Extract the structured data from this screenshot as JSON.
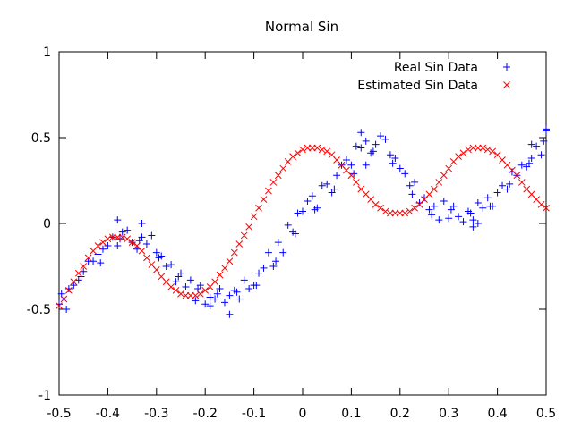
{
  "chart_data": {
    "type": "scatter",
    "title": "Normal Sin",
    "xlabel": "",
    "ylabel": "",
    "xlim": [
      -0.5,
      0.5
    ],
    "ylim": [
      -1,
      1
    ],
    "grid": false,
    "legend_position": "top-right",
    "x_ticks": [
      "-0.5",
      "-0.4",
      "-0.3",
      "-0.2",
      "-0.1",
      "0",
      "0.1",
      "0.2",
      "0.3",
      "0.4",
      "0.5"
    ],
    "x_tick_values": [
      -0.5,
      -0.4,
      -0.3,
      -0.2,
      -0.1,
      0,
      0.1,
      0.2,
      0.3,
      0.4,
      0.5
    ],
    "y_ticks": [
      "1",
      "0.5",
      "0",
      "-0.5",
      "-1"
    ],
    "y_tick_values": [
      1,
      0.5,
      0,
      -0.5,
      -1
    ],
    "series": [
      {
        "name": "Real Sin Data",
        "marker": "plus",
        "color": "#0000ff",
        "x": [
          -0.5,
          -0.49,
          -0.485,
          -0.48,
          -0.47,
          -0.46,
          -0.45,
          -0.44,
          -0.43,
          -0.42,
          -0.41,
          -0.4,
          -0.39,
          -0.38,
          -0.37,
          -0.36,
          -0.35,
          -0.34,
          -0.33,
          -0.32,
          -0.31,
          -0.3,
          -0.29,
          -0.28,
          -0.27,
          -0.26,
          -0.25,
          -0.24,
          -0.23,
          -0.22,
          -0.21,
          -0.2,
          -0.19,
          -0.18,
          -0.17,
          -0.16,
          -0.15,
          -0.14,
          -0.13,
          -0.12,
          -0.11,
          -0.1,
          -0.09,
          -0.08,
          -0.07,
          -0.06,
          -0.05,
          -0.04,
          -0.03,
          -0.02,
          -0.01,
          0.0,
          0.01,
          0.02,
          0.03,
          0.04,
          0.05,
          0.06,
          0.07,
          0.08,
          0.09,
          0.1,
          0.11,
          0.12,
          0.13,
          0.14,
          0.15,
          0.16,
          0.17,
          0.18,
          0.19,
          0.2,
          0.21,
          0.22,
          0.23,
          0.24,
          0.25,
          0.26,
          0.27,
          0.28,
          0.29,
          0.3,
          0.31,
          0.32,
          0.33,
          0.34,
          0.35,
          0.36,
          0.37,
          0.38,
          0.39,
          0.4,
          0.41,
          0.42,
          0.43,
          0.44,
          0.45,
          0.46,
          0.47,
          0.48,
          0.49,
          0.5,
          -0.495,
          -0.455,
          -0.415,
          -0.375,
          -0.335,
          -0.295,
          -0.255,
          -0.215,
          -0.175,
          -0.135,
          -0.095,
          -0.055,
          -0.015,
          0.025,
          0.065,
          0.105,
          0.145,
          0.185,
          0.225,
          0.265,
          0.305,
          0.345,
          0.385,
          0.425,
          0.465,
          0.495,
          -0.38,
          -0.33,
          -0.19,
          -0.15,
          0.12,
          0.13,
          0.35,
          0.36,
          0.47,
          0.5
        ],
        "values": [
          -0.47,
          -0.44,
          -0.5,
          -0.38,
          -0.36,
          -0.33,
          -0.28,
          -0.22,
          -0.22,
          -0.18,
          -0.15,
          -0.13,
          -0.08,
          -0.13,
          -0.05,
          -0.04,
          -0.11,
          -0.15,
          -0.08,
          -0.12,
          -0.07,
          -0.17,
          -0.19,
          -0.25,
          -0.24,
          -0.34,
          -0.29,
          -0.37,
          -0.33,
          -0.45,
          -0.36,
          -0.47,
          -0.43,
          -0.44,
          -0.38,
          -0.46,
          -0.42,
          -0.39,
          -0.44,
          -0.33,
          -0.38,
          -0.36,
          -0.29,
          -0.26,
          -0.17,
          -0.25,
          -0.11,
          -0.17,
          -0.01,
          -0.05,
          0.06,
          0.07,
          0.13,
          0.16,
          0.09,
          0.22,
          0.23,
          0.18,
          0.28,
          0.34,
          0.37,
          0.34,
          0.45,
          0.44,
          0.48,
          0.41,
          0.46,
          0.51,
          0.49,
          0.4,
          0.38,
          0.32,
          0.29,
          0.22,
          0.24,
          0.12,
          0.15,
          0.08,
          0.1,
          0.02,
          0.13,
          0.03,
          0.1,
          0.04,
          0.01,
          0.07,
          0.02,
          0.12,
          0.09,
          0.15,
          0.1,
          0.18,
          0.22,
          0.2,
          0.3,
          0.28,
          0.34,
          0.33,
          0.38,
          0.45,
          0.4,
          0.55,
          -0.41,
          -0.31,
          -0.23,
          -0.09,
          -0.1,
          -0.2,
          -0.31,
          -0.38,
          -0.41,
          -0.4,
          -0.36,
          -0.22,
          -0.06,
          0.08,
          0.2,
          0.29,
          0.42,
          0.35,
          0.17,
          0.05,
          0.08,
          0.06,
          0.1,
          0.23,
          0.35,
          0.48,
          0.02,
          0.0,
          -0.48,
          -0.53,
          0.53,
          0.34,
          -0.02,
          0.0,
          0.46,
          0.54
        ]
      },
      {
        "name": "Estimated Sin Data",
        "marker": "cross",
        "color": "#ff0000",
        "x": [
          -0.5,
          -0.49,
          -0.48,
          -0.47,
          -0.46,
          -0.45,
          -0.44,
          -0.43,
          -0.42,
          -0.41,
          -0.4,
          -0.39,
          -0.38,
          -0.37,
          -0.36,
          -0.35,
          -0.34,
          -0.33,
          -0.32,
          -0.31,
          -0.3,
          -0.29,
          -0.28,
          -0.27,
          -0.26,
          -0.25,
          -0.24,
          -0.23,
          -0.22,
          -0.21,
          -0.2,
          -0.19,
          -0.18,
          -0.17,
          -0.16,
          -0.15,
          -0.14,
          -0.13,
          -0.12,
          -0.11,
          -0.1,
          -0.09,
          -0.08,
          -0.07,
          -0.06,
          -0.05,
          -0.04,
          -0.03,
          -0.02,
          -0.01,
          0.0,
          0.01,
          0.02,
          0.03,
          0.04,
          0.05,
          0.06,
          0.07,
          0.08,
          0.09,
          0.1,
          0.11,
          0.12,
          0.13,
          0.14,
          0.15,
          0.16,
          0.17,
          0.18,
          0.19,
          0.2,
          0.21,
          0.22,
          0.23,
          0.24,
          0.25,
          0.26,
          0.27,
          0.28,
          0.29,
          0.3,
          0.31,
          0.32,
          0.33,
          0.34,
          0.35,
          0.36,
          0.37,
          0.38,
          0.39,
          0.4,
          0.41,
          0.42,
          0.43,
          0.44,
          0.45,
          0.46,
          0.47,
          0.48,
          0.49,
          0.5
        ],
        "values": [
          -0.48,
          -0.44,
          -0.39,
          -0.34,
          -0.29,
          -0.25,
          -0.2,
          -0.16,
          -0.13,
          -0.11,
          -0.09,
          -0.08,
          -0.08,
          -0.08,
          -0.09,
          -0.11,
          -0.13,
          -0.16,
          -0.2,
          -0.24,
          -0.27,
          -0.31,
          -0.34,
          -0.37,
          -0.39,
          -0.41,
          -0.42,
          -0.42,
          -0.42,
          -0.41,
          -0.39,
          -0.37,
          -0.34,
          -0.3,
          -0.26,
          -0.22,
          -0.17,
          -0.12,
          -0.07,
          -0.02,
          0.04,
          0.09,
          0.14,
          0.19,
          0.24,
          0.28,
          0.32,
          0.36,
          0.39,
          0.41,
          0.43,
          0.44,
          0.44,
          0.44,
          0.43,
          0.42,
          0.4,
          0.37,
          0.34,
          0.31,
          0.28,
          0.24,
          0.2,
          0.17,
          0.14,
          0.11,
          0.09,
          0.07,
          0.06,
          0.06,
          0.06,
          0.06,
          0.07,
          0.09,
          0.11,
          0.14,
          0.17,
          0.2,
          0.24,
          0.28,
          0.32,
          0.36,
          0.39,
          0.41,
          0.43,
          0.44,
          0.44,
          0.44,
          0.43,
          0.42,
          0.4,
          0.37,
          0.34,
          0.31,
          0.28,
          0.24,
          0.2,
          0.17,
          0.14,
          0.11,
          0.09
        ]
      }
    ]
  }
}
